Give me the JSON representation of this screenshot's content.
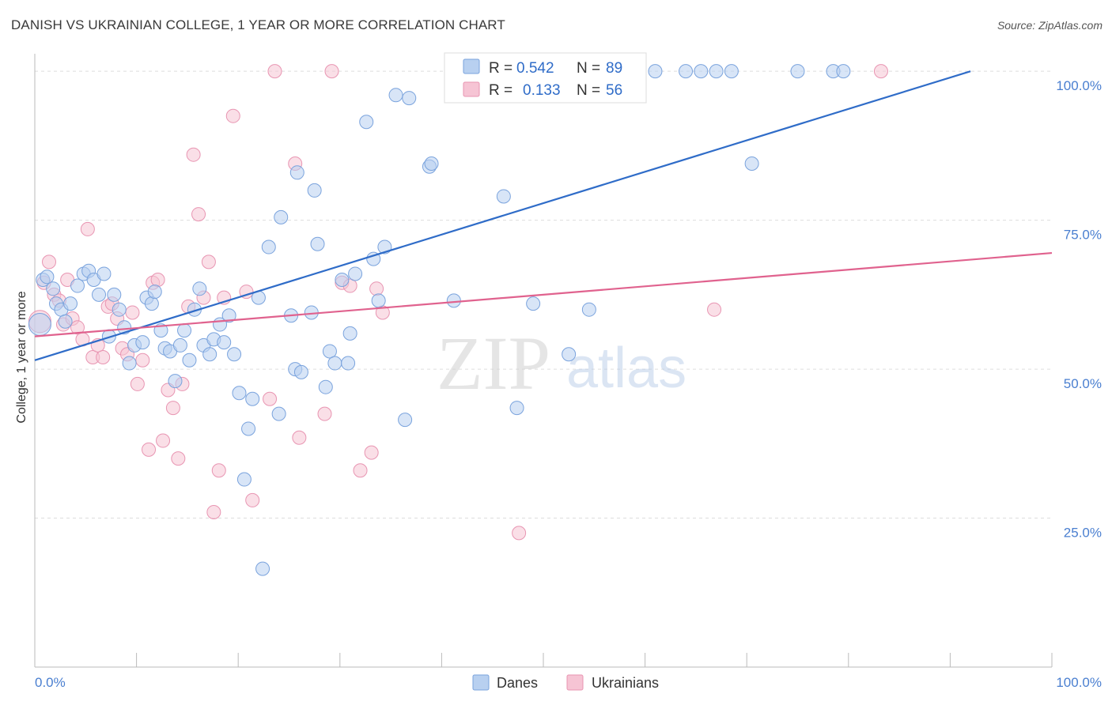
{
  "header": {
    "title": "DANISH VS UKRAINIAN COLLEGE, 1 YEAR OR MORE CORRELATION CHART",
    "source": "Source: ZipAtlas.com"
  },
  "watermark": {
    "zip": "ZIP",
    "atlas": "atlas"
  },
  "colors": {
    "danes_fill": "#b8d0f0",
    "danes_stroke": "#7aa3dd",
    "danes_line": "#2f6cc8",
    "ukr_fill": "#f6c4d4",
    "ukr_stroke": "#e895b2",
    "ukr_line": "#e0628e",
    "axis_text": "#4a7fd0",
    "grid": "#dddddd"
  },
  "legend": {
    "r_label": "R =",
    "n_label": "N =",
    "danes": {
      "r": "0.542",
      "n": "89"
    },
    "ukrainians": {
      "r": "0.133",
      "n": "56"
    }
  },
  "chart_data": {
    "type": "scatter",
    "ylabel": "College, 1 year or more",
    "xlim": [
      0,
      100
    ],
    "ylim": [
      0,
      104
    ],
    "x_ticks": [
      "0.0%",
      "100.0%"
    ],
    "y_ticks": [
      {
        "value": 25,
        "label": "25.0%"
      },
      {
        "value": 50,
        "label": "50.0%"
      },
      {
        "value": 75,
        "label": "75.0%"
      },
      {
        "value": 100,
        "label": "100.0%"
      }
    ],
    "grid": true,
    "legend_position": "top-center",
    "series": [
      {
        "name": "Danes",
        "trend": {
          "x": [
            0,
            92
          ],
          "y": [
            51.5,
            100
          ]
        },
        "points": [
          [
            0.5,
            57.5
          ],
          [
            0.8,
            65
          ],
          [
            1.2,
            65.5
          ],
          [
            1.8,
            63.5
          ],
          [
            2.1,
            61
          ],
          [
            2.6,
            60
          ],
          [
            3.0,
            58
          ],
          [
            3.5,
            61
          ],
          [
            4.2,
            64
          ],
          [
            4.8,
            66
          ],
          [
            5.3,
            66.5
          ],
          [
            5.8,
            65
          ],
          [
            6.3,
            62.5
          ],
          [
            6.8,
            66
          ],
          [
            7.3,
            55.5
          ],
          [
            7.8,
            62.5
          ],
          [
            8.3,
            60
          ],
          [
            8.8,
            57
          ],
          [
            9.3,
            51
          ],
          [
            9.8,
            54
          ],
          [
            10.6,
            54.5
          ],
          [
            11.0,
            62
          ],
          [
            11.5,
            61
          ],
          [
            11.8,
            63
          ],
          [
            12.4,
            56.5
          ],
          [
            12.8,
            53.5
          ],
          [
            13.3,
            53
          ],
          [
            13.8,
            48
          ],
          [
            14.3,
            54
          ],
          [
            14.7,
            56.5
          ],
          [
            15.2,
            51.5
          ],
          [
            15.7,
            60
          ],
          [
            16.2,
            63.5
          ],
          [
            16.6,
            54
          ],
          [
            17.2,
            52.5
          ],
          [
            17.6,
            55
          ],
          [
            18.2,
            57.5
          ],
          [
            18.6,
            54.5
          ],
          [
            19.1,
            59
          ],
          [
            19.6,
            52.5
          ],
          [
            20.1,
            46
          ],
          [
            20.6,
            31.5
          ],
          [
            21.0,
            40
          ],
          [
            21.4,
            45
          ],
          [
            22.0,
            62
          ],
          [
            22.4,
            16.5
          ],
          [
            23.0,
            70.5
          ],
          [
            24.0,
            42.5
          ],
          [
            24.2,
            75.5
          ],
          [
            25.2,
            59
          ],
          [
            25.6,
            50
          ],
          [
            25.8,
            83
          ],
          [
            26.2,
            49.5
          ],
          [
            27.2,
            59.5
          ],
          [
            27.5,
            80
          ],
          [
            27.8,
            71
          ],
          [
            28.6,
            47
          ],
          [
            29.0,
            53
          ],
          [
            29.5,
            51
          ],
          [
            30.2,
            65
          ],
          [
            30.8,
            51
          ],
          [
            31.0,
            56
          ],
          [
            31.5,
            66
          ],
          [
            32.6,
            91.5
          ],
          [
            33.3,
            68.5
          ],
          [
            33.8,
            61.5
          ],
          [
            34.4,
            70.5
          ],
          [
            35.5,
            96
          ],
          [
            36.4,
            41.5
          ],
          [
            36.8,
            95.5
          ],
          [
            38.8,
            84
          ],
          [
            39.0,
            84.5
          ],
          [
            41.2,
            61.5
          ],
          [
            43.0,
            100
          ],
          [
            43.6,
            100
          ],
          [
            46.1,
            79
          ],
          [
            47.4,
            43.5
          ],
          [
            49.0,
            61
          ],
          [
            52.5,
            52.5
          ],
          [
            54.5,
            60
          ],
          [
            61.0,
            100
          ],
          [
            64.0,
            100
          ],
          [
            65.5,
            100
          ],
          [
            67.0,
            100
          ],
          [
            68.5,
            100
          ],
          [
            70.5,
            84.5
          ],
          [
            75.0,
            100
          ],
          [
            78.5,
            100
          ],
          [
            79.5,
            100
          ]
        ]
      },
      {
        "name": "Ukrainians",
        "trend": {
          "x": [
            0,
            100
          ],
          "y": [
            55.5,
            69.5
          ]
        },
        "points": [
          [
            0.5,
            58
          ],
          [
            0.9,
            64.5
          ],
          [
            1.4,
            68
          ],
          [
            1.9,
            62.5
          ],
          [
            2.4,
            61.5
          ],
          [
            2.8,
            57.5
          ],
          [
            3.2,
            65
          ],
          [
            3.7,
            58.5
          ],
          [
            4.2,
            57
          ],
          [
            4.7,
            55
          ],
          [
            5.2,
            73.5
          ],
          [
            5.7,
            52
          ],
          [
            6.2,
            54
          ],
          [
            6.7,
            52
          ],
          [
            7.2,
            60.5
          ],
          [
            7.6,
            61
          ],
          [
            8.1,
            58.5
          ],
          [
            8.6,
            53.5
          ],
          [
            9.1,
            52.5
          ],
          [
            9.6,
            59.5
          ],
          [
            10.1,
            47.5
          ],
          [
            10.6,
            51.5
          ],
          [
            11.2,
            36.5
          ],
          [
            11.6,
            64.5
          ],
          [
            12.1,
            65
          ],
          [
            12.6,
            38
          ],
          [
            13.1,
            46.5
          ],
          [
            13.6,
            43.5
          ],
          [
            14.1,
            35
          ],
          [
            14.5,
            47.5
          ],
          [
            15.1,
            60.5
          ],
          [
            15.6,
            86
          ],
          [
            16.1,
            76
          ],
          [
            16.6,
            62
          ],
          [
            17.1,
            68
          ],
          [
            17.6,
            26
          ],
          [
            18.1,
            33
          ],
          [
            18.6,
            62
          ],
          [
            19.5,
            92.5
          ],
          [
            20.8,
            63
          ],
          [
            21.4,
            28
          ],
          [
            23.1,
            45
          ],
          [
            23.6,
            100
          ],
          [
            25.6,
            84.5
          ],
          [
            26.0,
            38.5
          ],
          [
            28.5,
            42.5
          ],
          [
            29.2,
            100
          ],
          [
            30.2,
            64.5
          ],
          [
            31.0,
            64
          ],
          [
            32.0,
            33
          ],
          [
            33.1,
            36
          ],
          [
            33.6,
            63.5
          ],
          [
            34.2,
            59.5
          ],
          [
            47.6,
            22.5
          ],
          [
            66.8,
            60
          ],
          [
            83.2,
            100
          ]
        ]
      }
    ]
  }
}
